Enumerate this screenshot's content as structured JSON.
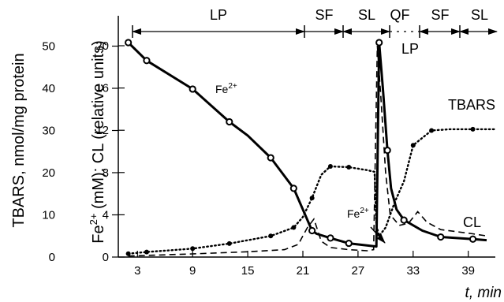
{
  "chart_data": {
    "type": "line",
    "x_label": "t, min",
    "x_ticks": [
      "3",
      "9",
      "15",
      "21",
      "27",
      "33",
      "39"
    ],
    "x_range": [
      1,
      42
    ],
    "y_outer_label": "TBARS, nmol/mg protein",
    "y_outer_ticks": [
      "0",
      "10",
      "20",
      "30",
      "40",
      "50"
    ],
    "y_outer_range": [
      0,
      55
    ],
    "y_inner_label_fe": "Fe",
    "y_inner_label_sup": "2+",
    "y_inner_label_rest": " (mM); CL (relative units)",
    "y_inner_ticks": [
      "0",
      "4",
      "8",
      "12",
      "16",
      "20"
    ],
    "y_inner_range": [
      0,
      22
    ],
    "phases": [
      "LP",
      "SF",
      "SL",
      "QF",
      "SF",
      "SL"
    ],
    "phase_lp2": "LP",
    "annotations": {
      "fe_top_main": "Fe",
      "fe_top_sup": "2+",
      "fe_bottom_main": "Fe",
      "fe_bottom_sup": "2+",
      "tbars": "TBARS",
      "cl": "CL"
    },
    "series": [
      {
        "name": "Fe2+",
        "axis": "inner",
        "style": "solid",
        "x": [
          2,
          4,
          9,
          13,
          15,
          17.5,
          20,
          21.5,
          22,
          22.5,
          24,
          26,
          29,
          29.3,
          29.7,
          30.2,
          30.6,
          31.2,
          32,
          34,
          36,
          39.5,
          41
        ],
        "y": [
          20.3,
          18.6,
          15.9,
          12.8,
          11.5,
          9.4,
          6.5,
          3.5,
          2.5,
          2.2,
          1.8,
          1.3,
          1.0,
          20.3,
          16,
          10.1,
          6.5,
          4.5,
          3.5,
          2.5,
          1.9,
          1.7,
          1.6
        ],
        "markers": [
          0,
          1,
          2,
          3,
          5,
          6,
          8,
          10,
          11,
          13,
          15,
          18,
          20,
          21
        ]
      },
      {
        "name": "TBARS",
        "axis": "outer",
        "style": "dotted",
        "x": [
          2,
          4,
          9,
          13,
          17.5,
          20,
          21,
          22,
          23,
          24,
          26,
          28,
          28.8,
          29,
          29.3,
          30,
          31,
          32,
          33,
          35,
          37,
          39.5,
          42
        ],
        "y": [
          0.8,
          1.2,
          2.0,
          3.2,
          5.0,
          7.0,
          9.5,
          14.0,
          19.5,
          21.5,
          21.3,
          20.6,
          20.2,
          7.5,
          5.0,
          7.0,
          13.0,
          18.0,
          26.5,
          30.0,
          30.3,
          30.3,
          30.3
        ],
        "markers": [
          0,
          1,
          2,
          3,
          4,
          5,
          7,
          9,
          10,
          18,
          19,
          21
        ]
      },
      {
        "name": "CL",
        "axis": "inner",
        "style": "dashed",
        "x": [
          2,
          9,
          15,
          19,
          20.5,
          21.5,
          22.2,
          23,
          24,
          26,
          28,
          28.7,
          29.1,
          29.5,
          30,
          30.5,
          31.5,
          32.5,
          33.5,
          34.5,
          36,
          39.5,
          41
        ],
        "y": [
          0.1,
          0.3,
          0.5,
          0.7,
          1.2,
          2.8,
          3.6,
          1.5,
          0.9,
          0.7,
          0.6,
          0.7,
          20,
          15,
          8,
          4.0,
          3.0,
          3.2,
          4.3,
          3.3,
          2.6,
          2.2,
          2.0
        ],
        "markers": []
      }
    ]
  }
}
